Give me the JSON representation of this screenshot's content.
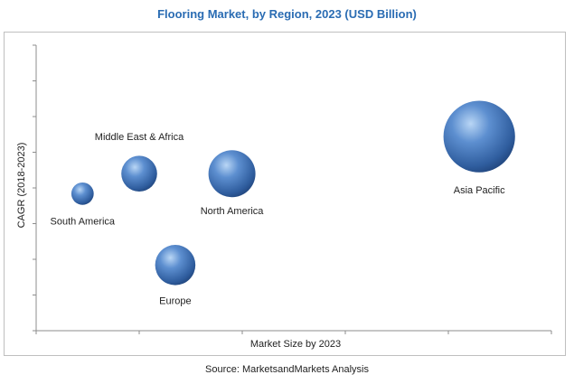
{
  "chart_data": {
    "type": "scatter",
    "title": "Flooring Market, by Region, 2023 (USD Billion)",
    "xlabel": "Market Size by 2023",
    "ylabel": "CAGR (2018-2023)",
    "xlim": [
      0,
      10
    ],
    "ylim": [
      0,
      10
    ],
    "grid": false,
    "legend": "none",
    "bubble_color": "#3f6fb0",
    "points": [
      {
        "label": "South America",
        "x": 0.9,
        "y": 4.8,
        "size": 1.0
      },
      {
        "label": "Middle East & Africa",
        "x": 2.0,
        "y": 5.5,
        "size": 1.6
      },
      {
        "label": "North America",
        "x": 3.8,
        "y": 5.5,
        "size": 2.1
      },
      {
        "label": "Europe",
        "x": 2.7,
        "y": 2.3,
        "size": 1.8
      },
      {
        "label": "Asia Pacific",
        "x": 8.6,
        "y": 6.8,
        "size": 3.2
      }
    ]
  },
  "source": "Source: MarketsandMarkets Analysis"
}
